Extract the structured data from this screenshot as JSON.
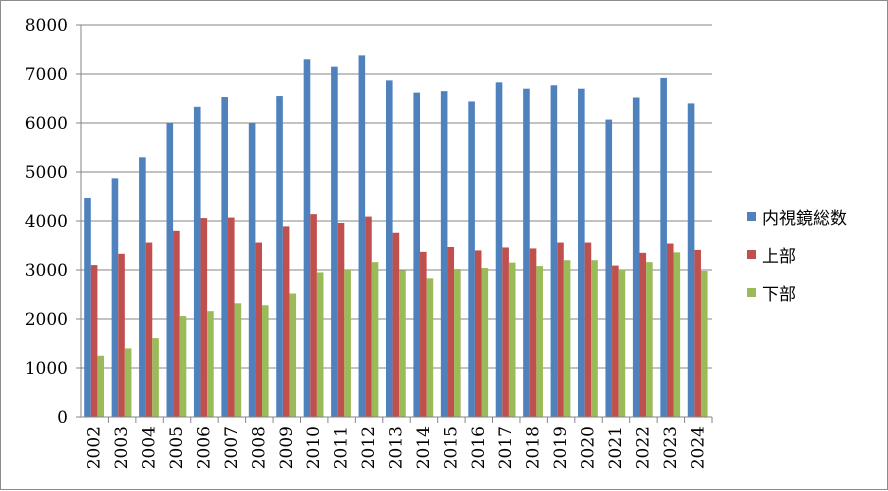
{
  "chart_data": {
    "type": "bar",
    "categories": [
      "2002",
      "2003",
      "2004",
      "2005",
      "2006",
      "2007",
      "2008",
      "2009",
      "2010",
      "2011",
      "2012",
      "2013",
      "2014",
      "2015",
      "2016",
      "2017",
      "2018",
      "2019",
      "2020",
      "2021",
      "2022",
      "2023",
      "2024"
    ],
    "series": [
      {
        "name": "内視鏡総数",
        "color": "#4f81bd",
        "values": [
          4470,
          4870,
          5300,
          6000,
          6330,
          6530,
          6000,
          6550,
          7300,
          7150,
          7380,
          6870,
          6620,
          6650,
          6440,
          6830,
          6700,
          6770,
          6700,
          6070,
          6520,
          6920,
          6400
        ]
      },
      {
        "name": "上部",
        "color": "#c0504d",
        "values": [
          3100,
          3330,
          3560,
          3800,
          4060,
          4070,
          3560,
          3890,
          4140,
          3960,
          4090,
          3760,
          3370,
          3470,
          3400,
          3460,
          3440,
          3560,
          3560,
          3090,
          3350,
          3540,
          3410
        ]
      },
      {
        "name": "下部",
        "color": "#9bbb59",
        "values": [
          1250,
          1400,
          1610,
          2060,
          2160,
          2320,
          2280,
          2520,
          2950,
          3000,
          3160,
          2990,
          2830,
          3020,
          3040,
          3150,
          3080,
          3200,
          3200,
          3000,
          3160,
          3360,
          2980
        ]
      }
    ],
    "y_ticks": [
      "0",
      "1000",
      "2000",
      "3000",
      "4000",
      "5000",
      "6000",
      "7000",
      "8000"
    ],
    "ylim": [
      0,
      8000
    ],
    "grid": true,
    "legend_position": "right"
  }
}
